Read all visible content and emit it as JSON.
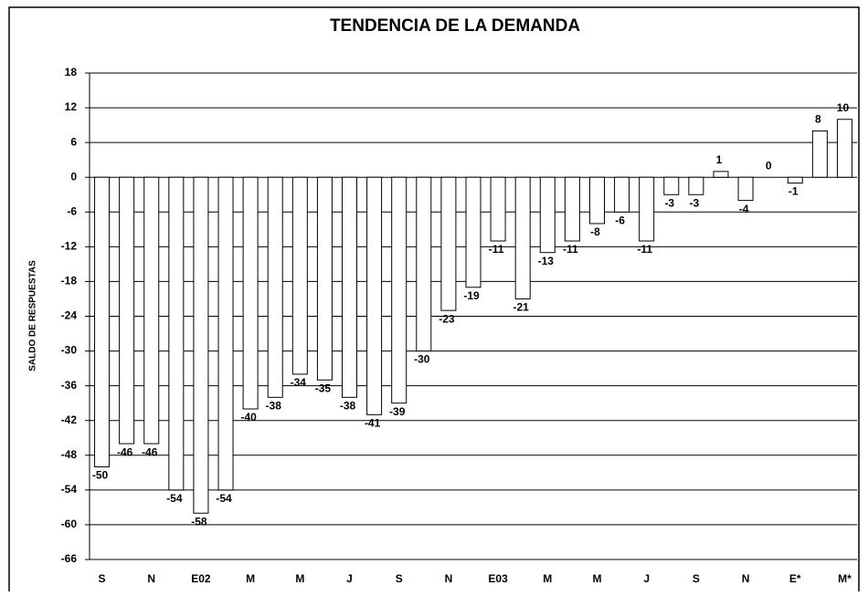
{
  "chart_data": {
    "type": "bar",
    "title": "TENDENCIA DE LA DEMANDA",
    "y_label": "SALDO DE RESPUESTAS",
    "categories": [
      "S",
      null,
      "N",
      null,
      "E02",
      null,
      "M",
      null,
      "M",
      null,
      "J",
      null,
      "S",
      null,
      "N",
      null,
      "E03",
      null,
      "M",
      null,
      "M",
      null,
      "J",
      null,
      "S",
      null,
      "N",
      null,
      "E*",
      null,
      "M*"
    ],
    "values": [
      -50,
      -46,
      -46,
      -54,
      -58,
      -54,
      -40,
      -38,
      -34,
      -35,
      -38,
      -41,
      -39,
      -30,
      -23,
      -19,
      -11,
      -21,
      -13,
      -11,
      -8,
      -6,
      -11,
      -3,
      -3,
      1,
      -4,
      0,
      -1,
      8,
      10
    ],
    "color": "#ffffff",
    "ylim": [
      -66,
      18
    ],
    "yticks": [
      -66,
      -60,
      -54,
      -48,
      -42,
      -36,
      -30,
      -24,
      -18,
      -12,
      -6,
      0,
      6,
      12,
      18
    ],
    "grid": true
  }
}
